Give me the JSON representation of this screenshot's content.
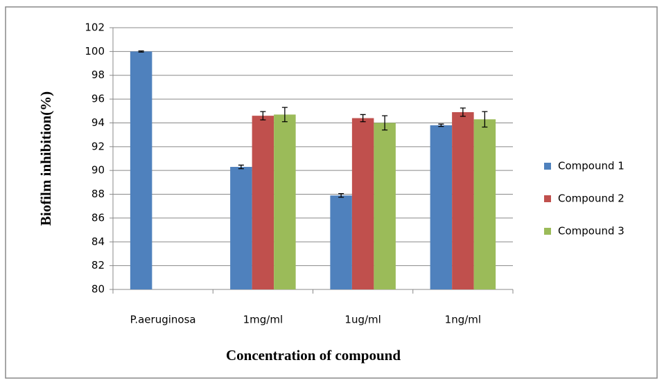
{
  "chart_data": {
    "type": "bar",
    "x_label": "Concentration of compound",
    "y_label": "Biofilm inhibition(%)",
    "categories": [
      "P.aeruginosa",
      "1mg/ml",
      "1ug/ml",
      "1ng/ml"
    ],
    "series": [
      {
        "name": "Compound 1",
        "color": "#4f81bd",
        "values": [
          100,
          90.3,
          87.9,
          93.8
        ],
        "errors": [
          0.05,
          0.15,
          0.15,
          0.1
        ]
      },
      {
        "name": "Compound 2",
        "color": "#c0504d",
        "values": [
          null,
          94.6,
          94.4,
          94.9
        ],
        "errors": [
          null,
          0.35,
          0.3,
          0.35
        ]
      },
      {
        "name": "Compound 3",
        "color": "#9bbb59",
        "values": [
          null,
          94.7,
          94.0,
          94.3
        ],
        "errors": [
          null,
          0.6,
          0.6,
          0.65
        ]
      }
    ],
    "ylim": [
      80,
      102
    ],
    "yticks": [
      80,
      82,
      84,
      86,
      88,
      90,
      92,
      94,
      96,
      98,
      100,
      102
    ],
    "grid": true,
    "legend": "right"
  }
}
